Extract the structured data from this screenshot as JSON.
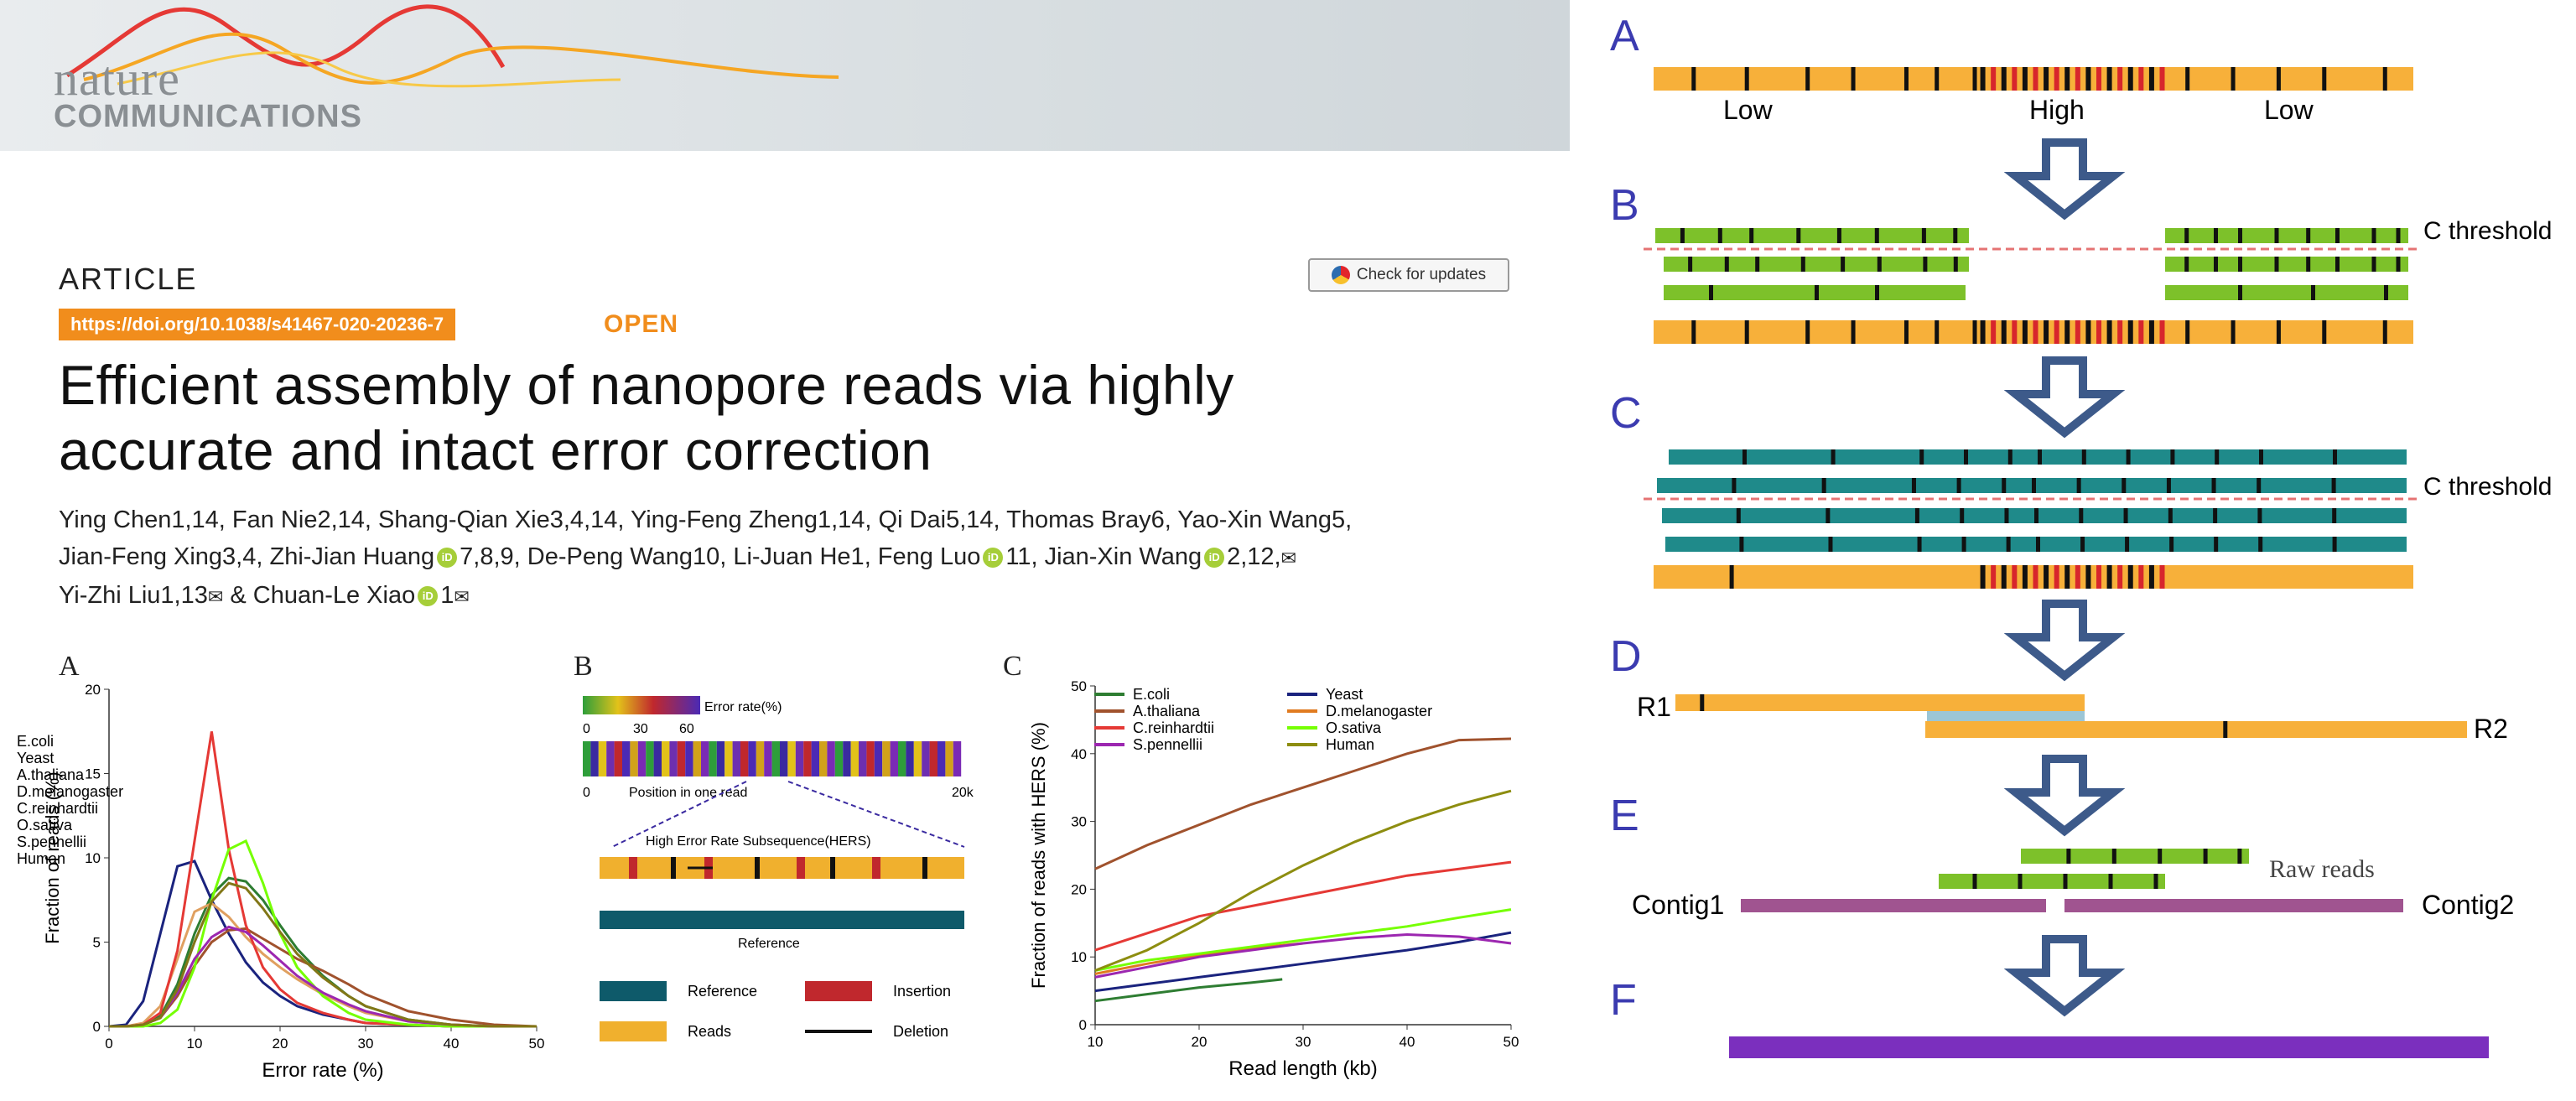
{
  "header": {
    "logo_nature": "nature",
    "logo_communications": "COMMUNICATIONS",
    "article_label": "ARTICLE",
    "doi": "https://doi.org/10.1038/s41467-020-20236-7",
    "open_label": "OPEN",
    "check_updates": "Check for updates",
    "title_line1": "Efficient assembly of nanopore reads via highly",
    "title_line2": "accurate and intact error correction",
    "authors_line1": "Ying Chen1,14, Fan Nie2,14, Shang-Qian Xie3,4,14, Ying-Feng Zheng1,14, Qi Dai5,14, Thomas Bray6, Yao-Xin Wang5,",
    "authors_line2a": "Jian-Feng Xing3,4, Zhi-Jian Huang",
    "authors_line2b": "7,8,9, De-Peng Wang10, Li-Juan He1, Feng Luo",
    "authors_line2c": "11, Jian-Xin Wang",
    "authors_line2d": "2,12,",
    "authors_line3a": "Yi-Zhi Liu1,13",
    "authors_line3b": " & Chuan-Le Xiao",
    "authors_line3c": "1",
    "orcid_label": "iD",
    "envelope": "✉"
  },
  "panelA": {
    "letter": "A"
  },
  "panelB": {
    "letter": "B",
    "colorbar_label": "Error rate(%)",
    "colorbar_ticks": [
      "0",
      "30",
      "60"
    ],
    "read_axis_left": "0",
    "read_axis_label": "Position in one read",
    "read_axis_right": "20k",
    "hers_label": "High Error Rate Subsequence(HERS)",
    "reference_label": "Reference",
    "legend": [
      {
        "label": "Reference",
        "color": "#0e5a6a"
      },
      {
        "label": "Insertion",
        "color": "#c0282d"
      },
      {
        "label": "Reads",
        "color": "#f0b02e"
      },
      {
        "label": "Deletion",
        "color": "#111111"
      }
    ]
  },
  "panelC": {
    "letter": "C"
  },
  "chart_data": [
    {
      "type": "line",
      "panel": "A",
      "xlabel": "Error rate (%)",
      "ylabel": "Fraction of reads (%)",
      "xlim": [
        0,
        50
      ],
      "ylim": [
        0,
        20
      ],
      "xticks": [
        0,
        10,
        20,
        30,
        40,
        50
      ],
      "yticks": [
        0,
        5,
        10,
        15,
        20
      ],
      "legend_position": "top-right",
      "x": [
        0,
        2,
        4,
        6,
        8,
        10,
        12,
        14,
        16,
        18,
        20,
        22,
        25,
        28,
        30,
        35,
        40,
        45,
        50
      ],
      "series": [
        {
          "name": "E.coli",
          "color": "#2e7d32",
          "values": [
            0,
            0,
            0.1,
            0.6,
            2.5,
            5.5,
            7.8,
            8.8,
            8.6,
            7.5,
            6.0,
            4.6,
            3.0,
            1.8,
            1.2,
            0.4,
            0.1,
            0,
            0
          ]
        },
        {
          "name": "Yeast",
          "color": "#1a237e",
          "values": [
            0,
            0.1,
            1.5,
            5.5,
            9.5,
            9.8,
            7.5,
            5.5,
            3.8,
            2.6,
            1.8,
            1.2,
            0.7,
            0.4,
            0.2,
            0.1,
            0,
            0,
            0
          ]
        },
        {
          "name": "A.thaliana",
          "color": "#a0522d",
          "values": [
            0,
            0,
            0.1,
            0.5,
            1.8,
            3.6,
            5.0,
            5.7,
            5.8,
            5.2,
            4.6,
            4.0,
            3.3,
            2.5,
            1.9,
            0.9,
            0.4,
            0.1,
            0
          ]
        },
        {
          "name": "D.melanogaster",
          "color": "#e0a060",
          "values": [
            0,
            0,
            0.2,
            1.2,
            4.0,
            6.8,
            7.3,
            6.5,
            5.3,
            4.3,
            3.5,
            2.8,
            1.9,
            1.2,
            0.8,
            0.3,
            0.1,
            0,
            0
          ]
        },
        {
          "name": "C.reinhardtii",
          "color": "#e53935",
          "values": [
            0,
            0,
            0.1,
            0.8,
            4.5,
            11.0,
            17.5,
            10.5,
            6.0,
            3.5,
            2.2,
            1.4,
            0.8,
            0.4,
            0.2,
            0.1,
            0,
            0,
            0
          ]
        },
        {
          "name": "O.sativa",
          "color": "#76ff03",
          "values": [
            0,
            0,
            0,
            0.2,
            1.0,
            3.5,
            7.5,
            10.5,
            11.0,
            8.5,
            5.5,
            3.5,
            1.8,
            0.8,
            0.4,
            0.1,
            0,
            0,
            0
          ]
        },
        {
          "name": "S.pennellii",
          "color": "#9c27b0",
          "values": [
            0,
            0,
            0.1,
            0.5,
            2.0,
            4.0,
            5.3,
            5.9,
            5.6,
            4.8,
            3.9,
            3.0,
            2.0,
            1.3,
            0.9,
            0.3,
            0.1,
            0,
            0
          ]
        },
        {
          "name": "Human",
          "color": "#827717",
          "values": [
            0,
            0,
            0.1,
            0.5,
            2.2,
            5.0,
            7.4,
            8.5,
            8.2,
            7.0,
            5.6,
            4.3,
            2.9,
            1.8,
            1.2,
            0.4,
            0.1,
            0,
            0
          ]
        }
      ]
    },
    {
      "type": "line",
      "panel": "C",
      "xlabel": "Read length (kb)",
      "ylabel": "Fraction of reads with HERS (%)",
      "xlim": [
        10,
        50
      ],
      "ylim": [
        0,
        50
      ],
      "xticks": [
        10,
        20,
        30,
        40,
        50
      ],
      "yticks": [
        0,
        10,
        20,
        30,
        40,
        50
      ],
      "legend_position": "top",
      "x": [
        10,
        15,
        20,
        25,
        30,
        35,
        40,
        45,
        50
      ],
      "series": [
        {
          "name": "E.coli",
          "color": "#2e7d32",
          "values": [
            3.5,
            4.5,
            5.5,
            6.2,
            null,
            null,
            null,
            null,
            null
          ],
          "x_end": 28,
          "end_value": 6.7
        },
        {
          "name": "Yeast",
          "color": "#1a237e",
          "values": [
            5.0,
            6.0,
            7.0,
            8.0,
            9.0,
            10.0,
            11.0,
            12.2,
            13.6
          ]
        },
        {
          "name": "A.thaliana",
          "color": "#a0522d",
          "values": [
            23.0,
            26.5,
            29.5,
            32.5,
            35.0,
            37.5,
            40.0,
            42.0,
            42.2
          ]
        },
        {
          "name": "D.melanogaster",
          "color": "#e07b20",
          "values": [
            7.5,
            9.0,
            10.3,
            11.3,
            12.0,
            null,
            null,
            null,
            null
          ]
        },
        {
          "name": "C.reinhardtii",
          "color": "#e53935",
          "values": [
            11.0,
            13.5,
            16.0,
            17.5,
            19.0,
            20.5,
            22.0,
            23.0,
            24.0
          ]
        },
        {
          "name": "O.sativa",
          "color": "#76ff03",
          "values": [
            8.0,
            9.5,
            10.5,
            11.5,
            12.5,
            13.5,
            14.5,
            15.8,
            17.0
          ]
        },
        {
          "name": "S.pennellii",
          "color": "#9c27b0",
          "values": [
            7.0,
            8.5,
            10.0,
            11.0,
            12.0,
            12.8,
            13.3,
            13.0,
            12.0
          ]
        },
        {
          "name": "Human",
          "color": "#8d8d10",
          "values": [
            8.0,
            11.0,
            15.0,
            19.5,
            23.5,
            27.0,
            30.0,
            32.5,
            34.5
          ]
        }
      ]
    }
  ],
  "schematic": {
    "letters": [
      "A",
      "B",
      "C",
      "D",
      "E",
      "F"
    ],
    "label_low_left": "Low",
    "label_high": "High",
    "label_low_right": "Low",
    "c_threshold_b": "C threshold",
    "c_threshold_c": "C threshold",
    "r1": "R1",
    "r2": "R2",
    "raw_reads": "Raw reads",
    "contig1": "Contig1",
    "contig2": "Contig2",
    "colors": {
      "orange": "#f7b03a",
      "green": "#7dc12a",
      "teal": "#1f8a8a",
      "purple": "#7b2fbe",
      "contig": "#a05490",
      "arrow": "#3d5a8a",
      "threshold": "#e57373"
    }
  }
}
